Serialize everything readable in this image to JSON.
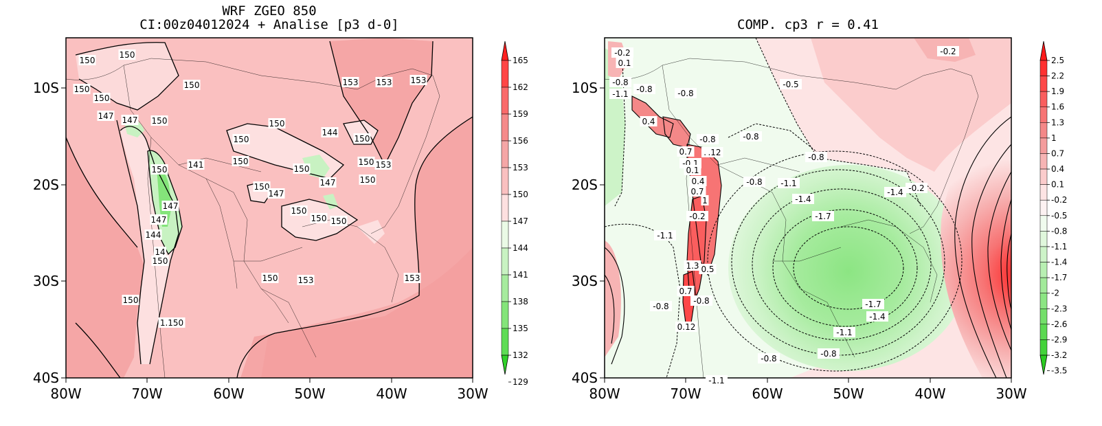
{
  "left_panel": {
    "title_line1": "WRF ZGEO 850",
    "title_line2": "CI:00z04012024 + Analise  [p3 d-0]",
    "x_ticks": [
      "80W",
      "70W",
      "60W",
      "50W",
      "40W",
      "30W"
    ],
    "y_ticks": [
      "10S",
      "20S",
      "30S",
      "40S"
    ],
    "colorbar": {
      "labels": [
        "165",
        "162",
        "159",
        "156",
        "153",
        "150",
        "147",
        "144",
        "141",
        "138",
        "135",
        "132",
        "129"
      ],
      "colors": [
        "#ff2020",
        "#ff4545",
        "#fa6a6a",
        "#f58a8a",
        "#f5a6a6",
        "#fac0c0",
        "#fde0e0",
        "#eafae6",
        "#c8f2c2",
        "#a6eb9e",
        "#84e47a",
        "#5edc55",
        "#30d22a"
      ]
    },
    "contour_labels": [
      "150",
      "150",
      "150",
      "150",
      "147",
      "147",
      "150",
      "150",
      "150",
      "150",
      "150",
      "144",
      "150",
      "150",
      "141",
      "147",
      "147",
      "144",
      "14",
      "150",
      "150",
      "147",
      "150",
      "147",
      "150",
      "150",
      "150",
      "153",
      "153",
      "153",
      "153",
      "150",
      "150",
      "153",
      "150",
      "153",
      "1.150",
      "150"
    ]
  },
  "right_panel": {
    "title": "COMP. cp3  r =  0.41",
    "x_ticks": [
      "80W",
      "70W",
      "60W",
      "50W",
      "40W",
      "30W"
    ],
    "y_ticks": [
      "10S",
      "20S",
      "30S",
      "40S"
    ],
    "colorbar": {
      "labels": [
        "2.5",
        "2.2",
        "1.9",
        "1.6",
        "1.3",
        "1",
        "0.7",
        "0.4",
        "0.1",
        "-0.2",
        "-0.5",
        "-0.8",
        "-1.1",
        "-1.4",
        "-1.7",
        "-2",
        "-2.3",
        "-2.6",
        "-2.9",
        "-3.2",
        "-3.5"
      ],
      "colors": [
        "#ff1a1a",
        "#ff3030",
        "#fd4848",
        "#fa5e5e",
        "#f77474",
        "#f48888",
        "#f49c9c",
        "#f7b4b4",
        "#fbcccc",
        "#fde4e4",
        "#fdf2f2",
        "#f0fbee",
        "#e0f7dc",
        "#cdf3c8",
        "#b8efb2",
        "#a2ea9a",
        "#8ce583",
        "#74df6a",
        "#5cd952",
        "#44d33a",
        "#2ccc22"
      ]
    },
    "contour_labels": [
      "-0.2",
      "0.1",
      "-0.8",
      "-1.1",
      "-0.8",
      "-0.8",
      "0.4",
      "-0.8",
      "-0.8",
      "0.7",
      ".4",
      ".12",
      "-0.1",
      "-0.5",
      "-0.8",
      "0.1",
      "0.4",
      "-0.8",
      "-1.1",
      "0.7",
      "1",
      "-1.4",
      "-1.7",
      "-0.2",
      "-1.1",
      "1.3",
      "0.5",
      "0.7",
      "-0.8",
      "-0.8",
      "-1.7",
      "-1.4",
      "-1.1",
      "-0.8",
      "-0.8",
      "-1.1",
      "-0.2",
      "-0.2",
      "-1.4",
      "0.12"
    ]
  }
}
